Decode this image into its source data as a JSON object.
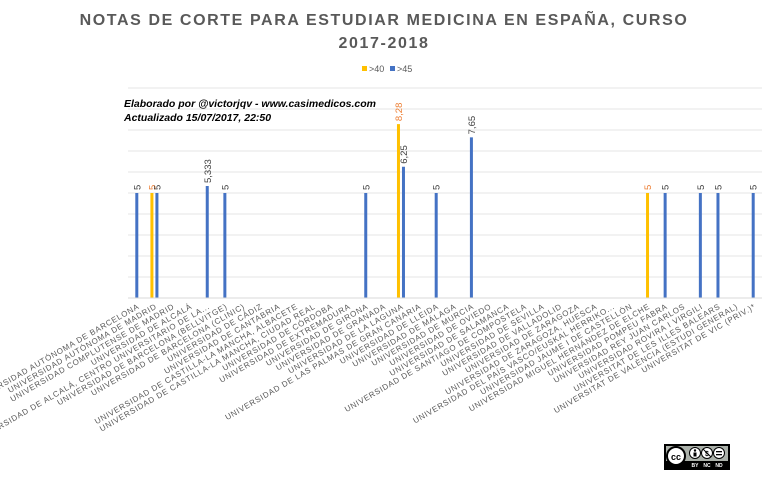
{
  "chart_data": {
    "type": "bar",
    "title_line1": "NOTAS DE CORTE PARA ESTUDIAR MEDICINA EN ESPAÑA, CURSO",
    "title_line2": "2017-2018",
    "xlabel": "",
    "ylabel": "",
    "ylim": [
      0,
      10
    ],
    "grid": true,
    "legend_position": "top-center",
    "annotation_line1": "Elaborado por @victorjqv - www.casimedicos.com",
    "annotation_line2": "Actualizado 15/07/2017, 22:50",
    "categories": [
      "UNIVERSIDAD AUTÓNOMA DE BARCELONA",
      "UNIVERSIDAD AUTÓNOMA DE MADRID",
      "UNIVERSIDAD COMPLUTENSE DE MADRID",
      "UNIVERSIDAD DE ALCALÁ",
      "UNIVERSIDAD DE ALCALÁ, CENTRO UNIVERSITARIO DE LA...",
      "UNIVERSIDAD DE BARCELONA (BELLVITGE)",
      "UNIVERSIDAD DE BARCELONA (CLINIC)",
      "UNIVERSIDAD DE CÁDIZ",
      "UNIVERSIDAD DE CANTABRIA",
      "UNIVERSIDAD DE CASTILLA-LA MANCHA, ALBACETE",
      "UNIVERSIDAD DE CASTILLA-LA MANCHA, CIUDAD REAL",
      "UNIVERSIDAD DE CÓRDOBA",
      "UNIVERSIDAD DE EXTREMADURA",
      "UNIVERSIDAD DE GIRONA",
      "UNIVERSIDAD DE GRANADA",
      "UNIVERSIDAD DE LA LAGUNA",
      "UNIVERSIDAD DE LAS PALMAS DE GRAN CANARIA",
      "UNIVERSIDAD DE LLEIDA",
      "UNIVERSIDAD DE MÁLAGA",
      "UNIVERSIDAD DE MURCIA",
      "UNIVERSIDAD DE OVIEDO",
      "UNIVERSIDAD DE SALAMANCA",
      "UNIVERSIDAD DE SANTIAGO DE COMPOSTELA",
      "UNIVERSIDAD DE SEVILLA",
      "UNIVERSIDAD DE VALLADOLID",
      "UNIVERSIDAD DE ZARAGOZA",
      "UNIVERSIDAD DE ZARAGOZA, HUESCA",
      "UNIVERSIDAD DEL PAÍS VASCO/EUSKAL HERRIKO...",
      "UNIVERSIDAD JAUME I DE CASTELLÓN",
      "UNIVERSIDAD MIGUEL HERNÁNDEZ DE ELCHE",
      "UNIVERSIDAD POMPEU FABRA",
      "UNIVERSIDAD REY JUAN CARLOS",
      "UNIVERSIDAD ROVIRA I VIRGILI",
      "UNIVERSITAT DE LES ILLES BALEARS",
      "UNIVERSITAT DE VALÈNCIA (ESTUDI GENERAL)",
      "UNIVERSITAT DE VIC (PRIV.)*"
    ],
    "series": [
      {
        "name": ">40",
        "color": "#FFC000",
        "label_color": "#ED7D31",
        "values": [
          null,
          5,
          null,
          null,
          null,
          null,
          null,
          null,
          null,
          null,
          null,
          null,
          null,
          null,
          null,
          8.28,
          null,
          null,
          null,
          null,
          null,
          null,
          null,
          null,
          null,
          null,
          null,
          null,
          null,
          5,
          null,
          null,
          null,
          null,
          null,
          null
        ],
        "labels": [
          null,
          "5",
          null,
          null,
          null,
          null,
          null,
          null,
          null,
          null,
          null,
          null,
          null,
          null,
          null,
          "8,28",
          null,
          null,
          null,
          null,
          null,
          null,
          null,
          null,
          null,
          null,
          null,
          null,
          null,
          "5",
          null,
          null,
          null,
          null,
          null,
          null
        ]
      },
      {
        "name": ">45",
        "color": "#4472C4",
        "label_color": "#404040",
        "values": [
          5,
          5,
          null,
          null,
          5.333,
          5,
          null,
          null,
          null,
          null,
          null,
          null,
          null,
          5,
          null,
          6.25,
          null,
          5,
          null,
          7.65,
          null,
          null,
          null,
          null,
          null,
          null,
          null,
          null,
          null,
          null,
          5,
          null,
          5,
          5,
          null,
          5
        ],
        "labels": [
          "5",
          "5",
          null,
          null,
          "5,333",
          "5",
          null,
          null,
          null,
          null,
          null,
          null,
          null,
          "5",
          null,
          "6,25",
          null,
          "5",
          null,
          "7,65",
          null,
          null,
          null,
          null,
          null,
          null,
          null,
          null,
          null,
          null,
          "5",
          null,
          "5",
          "5",
          null,
          "5"
        ]
      }
    ]
  },
  "license": {
    "symbols": "cc-by-nc-nd-icon",
    "text_by": "BY",
    "text_nc": "NC",
    "text_nd": "ND"
  }
}
